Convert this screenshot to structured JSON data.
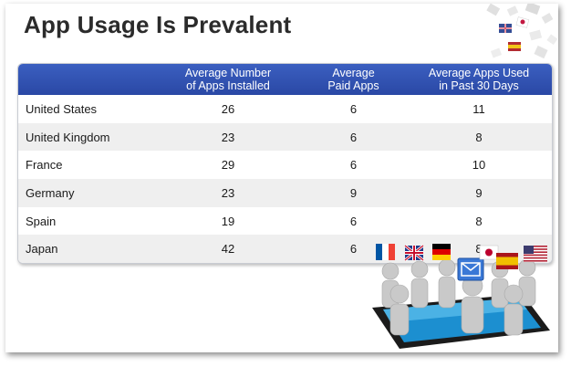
{
  "title": "App Usage Is Prevalent",
  "table": {
    "headers": [
      {
        "line1": "",
        "line2": ""
      },
      {
        "line1": "Average Number",
        "line2": "of Apps Installed"
      },
      {
        "line1": "Average",
        "line2": "Paid Apps"
      },
      {
        "line1": "Average Apps Used",
        "line2": "in Past 30 Days"
      }
    ],
    "rows": [
      {
        "country": "United States",
        "installed": "26",
        "paid": "6",
        "used": "11"
      },
      {
        "country": "United Kingdom",
        "installed": "23",
        "paid": "6",
        "used": "8"
      },
      {
        "country": "France",
        "installed": "29",
        "paid": "6",
        "used": "10"
      },
      {
        "country": "Germany",
        "installed": "23",
        "paid": "9",
        "used": "9"
      },
      {
        "country": "Spain",
        "installed": "19",
        "paid": "6",
        "used": "8"
      },
      {
        "country": "Japan",
        "installed": "42",
        "paid": "6",
        "used": "8"
      }
    ]
  },
  "colors": {
    "header_blue": "#2f4fb0",
    "row_alt": "#efefef",
    "title": "#2b2b2b"
  },
  "icons": [
    "flag-collage-icon",
    "people-with-flags-illustration"
  ]
}
